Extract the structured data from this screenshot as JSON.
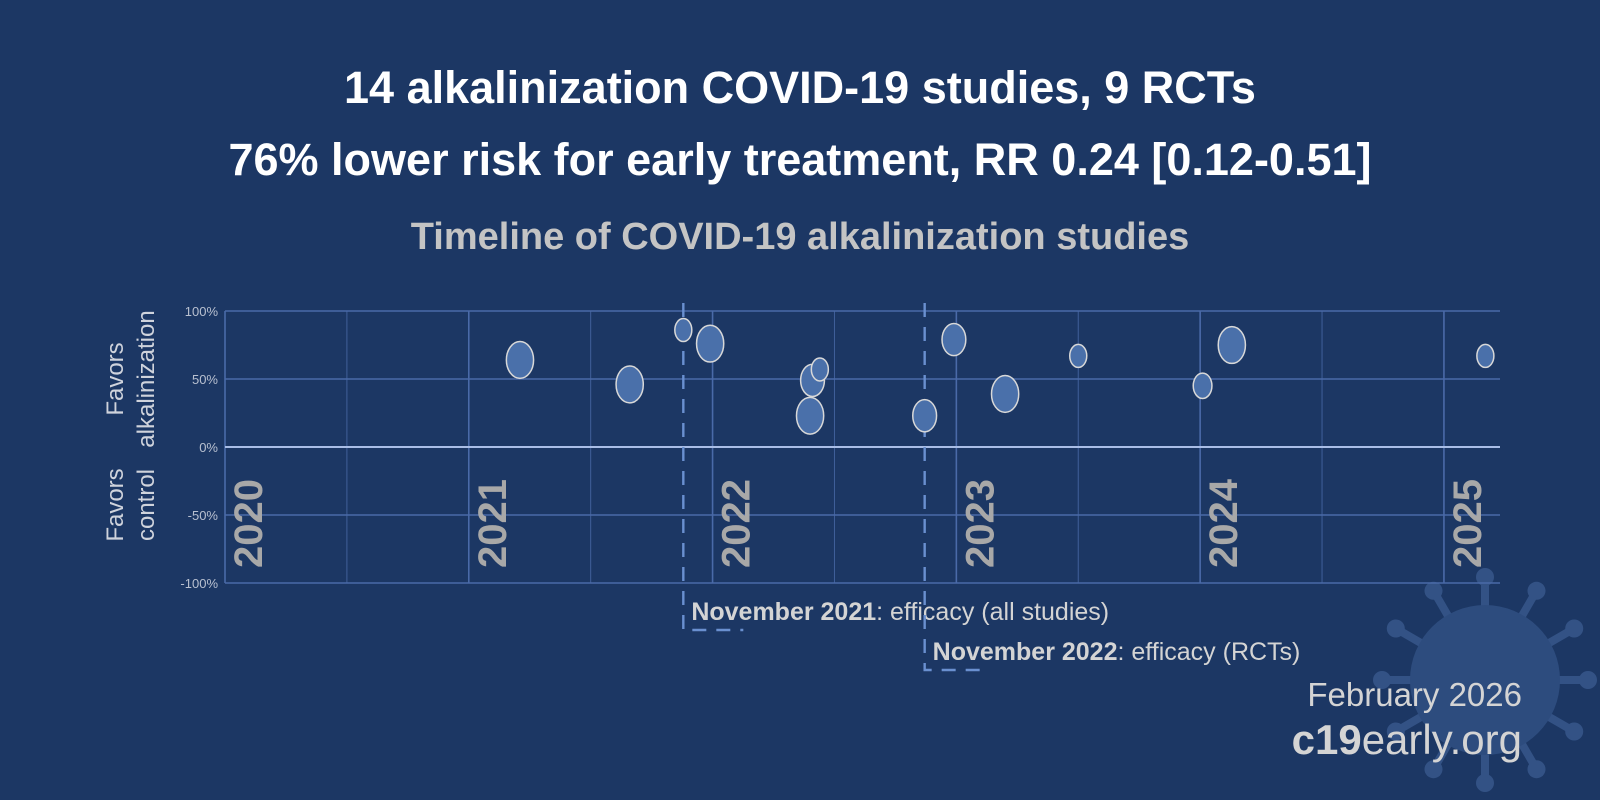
{
  "header": {
    "title_line1": "14 alkalinization COVID-19 studies, 9 RCTs",
    "title_line2": "76% lower risk for early treatment, RR 0.24 [0.12-0.51]"
  },
  "chart_data": {
    "type": "scatter",
    "title": "Timeline of COVID-19 alkalinization studies",
    "xlim": [
      2020,
      2025.23
    ],
    "ylim": [
      -100,
      100
    ],
    "x_tick_labels": [
      "2020",
      "2021",
      "2022",
      "2023",
      "2024",
      "2025"
    ],
    "y_tick_labels": [
      "100%",
      "50%",
      "0%",
      "-50%",
      "-100%"
    ],
    "y_ticks": [
      100,
      50,
      0,
      -50,
      -100
    ],
    "ylabel_top": [
      "Favors",
      "alkalinization"
    ],
    "ylabel_bottom": [
      "Favors",
      "control"
    ],
    "grid": true,
    "points": [
      {
        "x": 2021.21,
        "y": 64,
        "size": 1.6
      },
      {
        "x": 2021.66,
        "y": 46,
        "size": 1.6
      },
      {
        "x": 2021.88,
        "y": 86,
        "size": 1.0
      },
      {
        "x": 2021.99,
        "y": 76,
        "size": 1.6
      },
      {
        "x": 2022.41,
        "y": 49,
        "size": 1.4
      },
      {
        "x": 2022.44,
        "y": 57,
        "size": 1.0
      },
      {
        "x": 2022.4,
        "y": 23,
        "size": 1.6
      },
      {
        "x": 2022.87,
        "y": 23,
        "size": 1.4
      },
      {
        "x": 2022.99,
        "y": 79,
        "size": 1.4
      },
      {
        "x": 2023.2,
        "y": 39,
        "size": 1.6
      },
      {
        "x": 2023.5,
        "y": 67,
        "size": 1.0
      },
      {
        "x": 2024.01,
        "y": 45,
        "size": 1.1
      },
      {
        "x": 2024.13,
        "y": 75,
        "size": 1.6
      },
      {
        "x": 2025.17,
        "y": 67,
        "size": 1.0
      }
    ],
    "annotations": [
      {
        "x": 2021.88,
        "bold": "November 2021",
        "text": ": efficacy (all studies)"
      },
      {
        "x": 2022.87,
        "bold": "November 2022",
        "text": ": efficacy (RCTs)"
      }
    ],
    "colors": {
      "background": "#1c3764",
      "point_fill": "#4a70aa",
      "point_stroke": "#d8d8d8",
      "grid": "#4a6aa8",
      "zero_line": "#a9bde6",
      "annotation_line": "#6a90d0"
    }
  },
  "footer": {
    "date": "February 2026",
    "site_bold": "c19",
    "site_rest": "early.org"
  }
}
